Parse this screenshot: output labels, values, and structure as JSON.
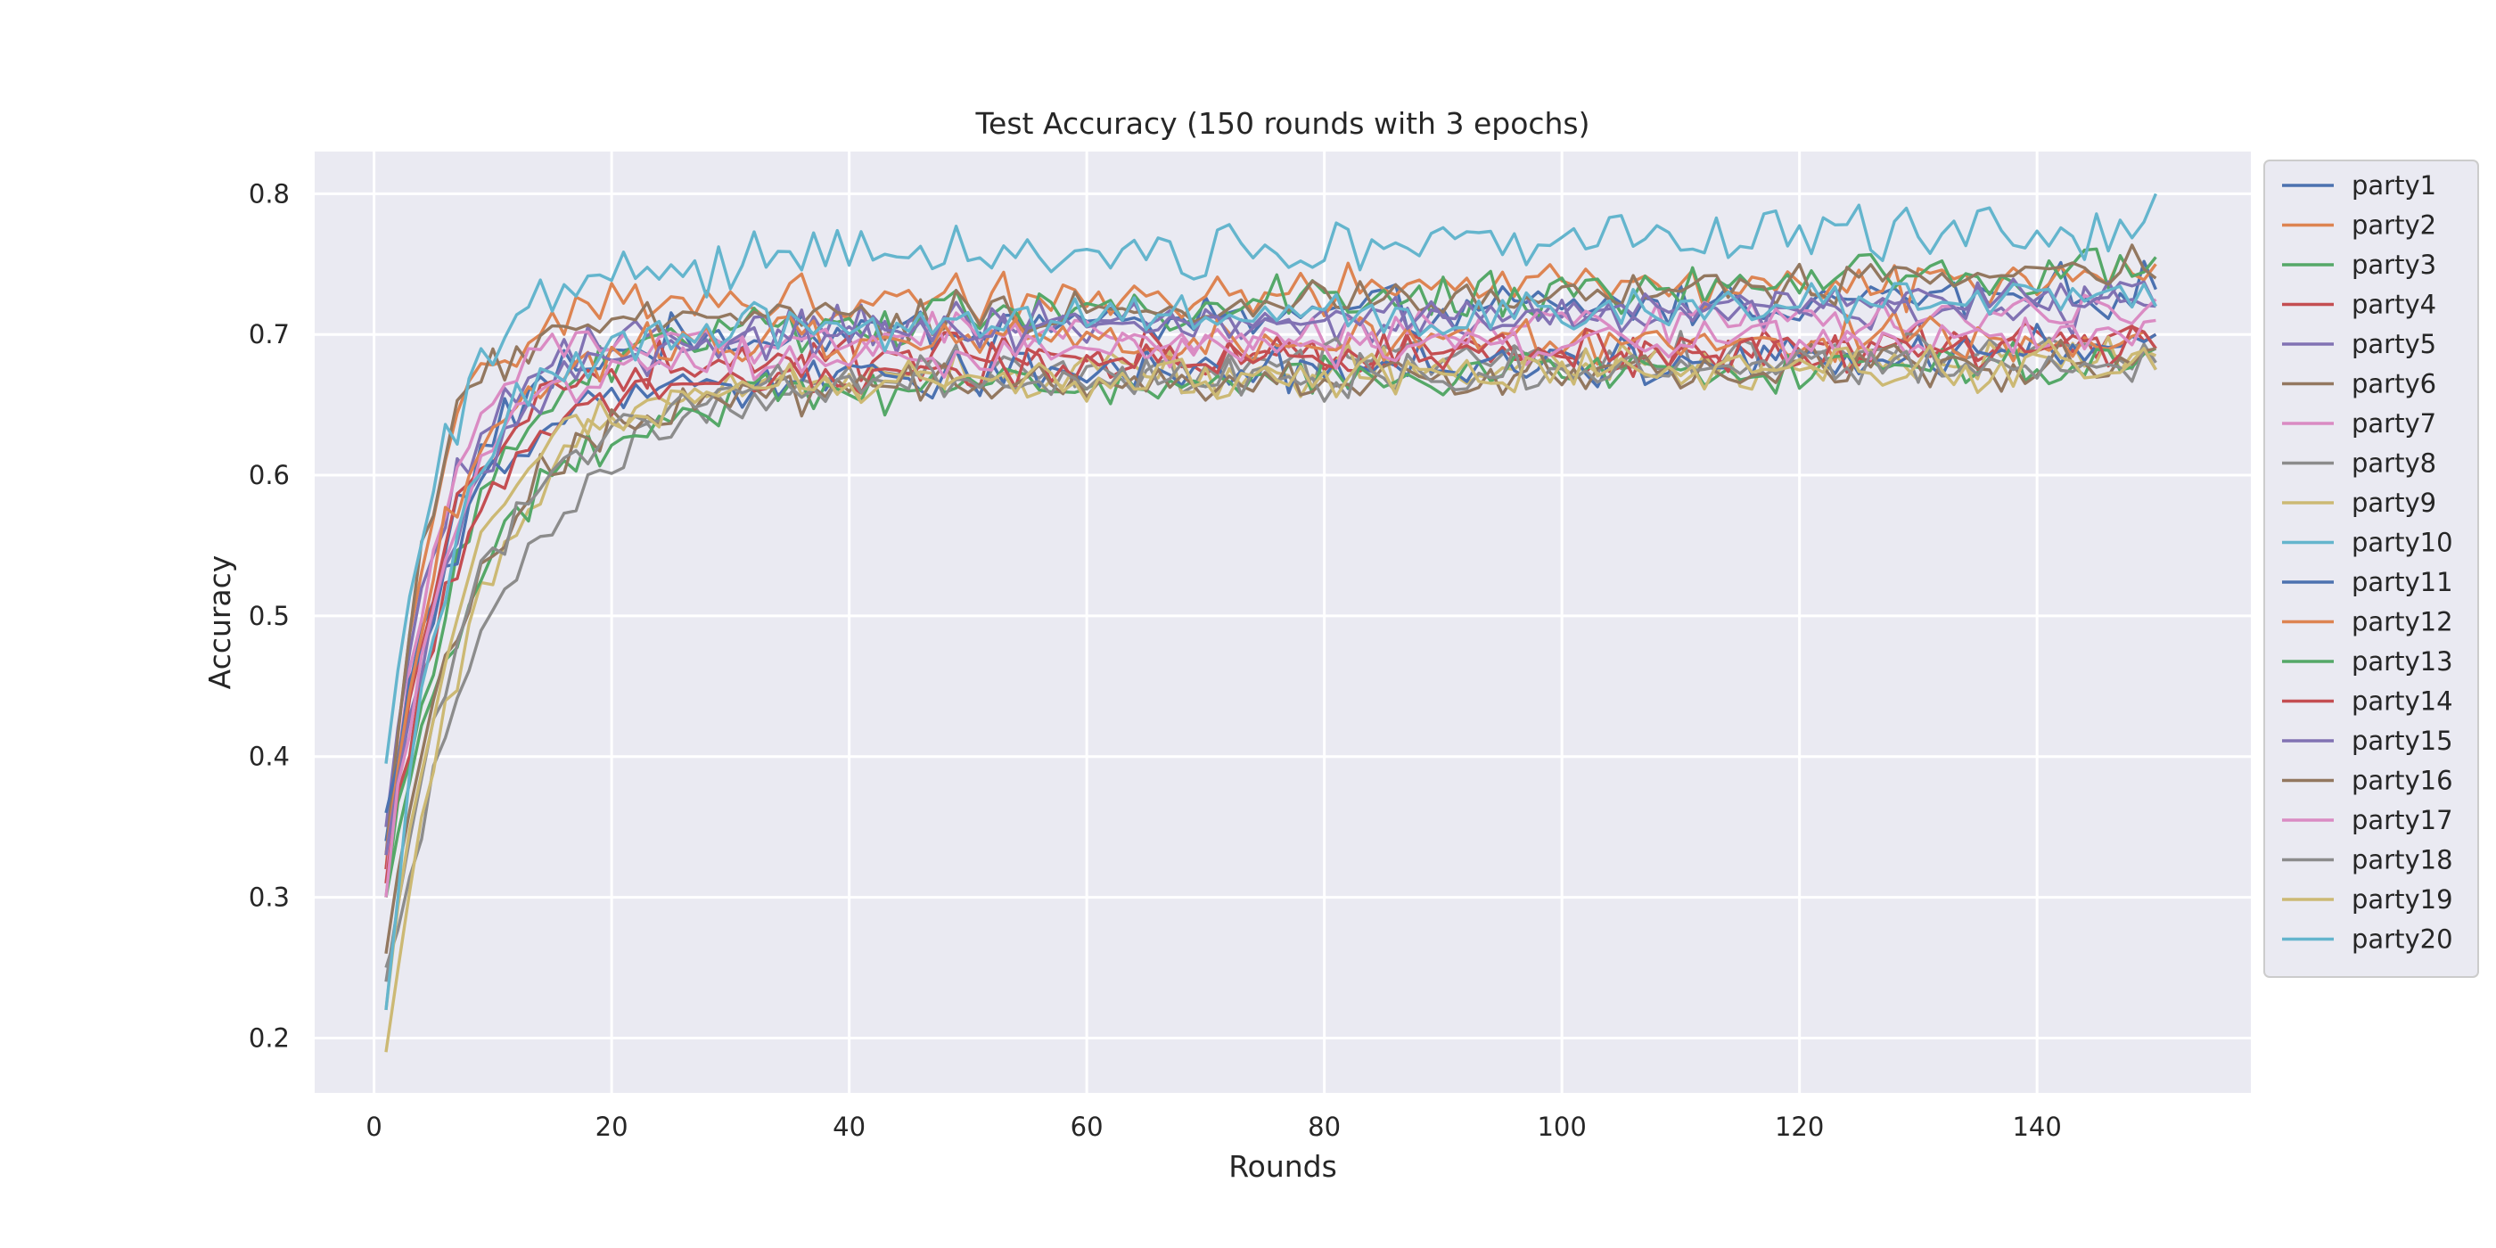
{
  "chart_data": {
    "type": "line",
    "title": "Test Accuracy (150 rounds with 3 epochs)",
    "xlabel": "Rounds",
    "ylabel": "Accuracy",
    "xlim": [
      -5,
      158
    ],
    "ylim": [
      0.161,
      0.83
    ],
    "xticks": [
      0,
      20,
      40,
      60,
      80,
      100,
      120,
      140
    ],
    "yticks": [
      0.2,
      0.3,
      0.4,
      0.5,
      0.6,
      0.7,
      0.8
    ],
    "grid": true,
    "legend_position": "outside-right",
    "x_range": [
      1,
      150
    ],
    "series": [
      {
        "name": "party1",
        "color": "#4c72b0",
        "start": 0.34,
        "plateau": 0.692,
        "tau": 5.5,
        "late": 0.04,
        "last": 0.732,
        "noise": 0.011
      },
      {
        "name": "party2",
        "color": "#dd8452",
        "start": 0.32,
        "plateau": 0.72,
        "tau": 4.0,
        "late": 0.02,
        "last": 0.75,
        "noise": 0.011
      },
      {
        "name": "party3",
        "color": "#55a868",
        "start": 0.3,
        "plateau": 0.7,
        "tau": 7.0,
        "late": 0.045,
        "last": 0.755,
        "noise": 0.011
      },
      {
        "name": "party4",
        "color": "#c44e52",
        "start": 0.32,
        "plateau": 0.68,
        "tau": 5.0,
        "late": 0.015,
        "last": 0.7,
        "noise": 0.01
      },
      {
        "name": "party5",
        "color": "#8172b3",
        "start": 0.35,
        "plateau": 0.7,
        "tau": 5.0,
        "late": 0.02,
        "last": 0.72,
        "noise": 0.01
      },
      {
        "name": "party6",
        "color": "#937860",
        "start": 0.33,
        "plateau": 0.7,
        "tau": 3.5,
        "late": 0.045,
        "last": 0.74,
        "noise": 0.01
      },
      {
        "name": "party7",
        "color": "#da8bc3",
        "start": 0.31,
        "plateau": 0.69,
        "tau": 4.0,
        "late": 0.025,
        "last": 0.725,
        "noise": 0.01
      },
      {
        "name": "party8",
        "color": "#8c8c8c",
        "start": 0.25,
        "plateau": 0.67,
        "tau": 10.0,
        "late": 0.02,
        "last": 0.68,
        "noise": 0.011
      },
      {
        "name": "party9",
        "color": "#ccb974",
        "start": 0.19,
        "plateau": 0.665,
        "tau": 7.0,
        "late": 0.02,
        "last": 0.685,
        "noise": 0.01
      },
      {
        "name": "party10",
        "color": "#64b5cd",
        "start": 0.395,
        "plateau": 0.745,
        "tau": 5.0,
        "late": 0.03,
        "last": 0.8,
        "noise": 0.012
      },
      {
        "name": "party11",
        "color": "#4c72b0",
        "start": 0.36,
        "plateau": 0.66,
        "tau": 6.0,
        "late": 0.03,
        "last": 0.7,
        "noise": 0.01
      },
      {
        "name": "party12",
        "color": "#dd8452",
        "start": 0.33,
        "plateau": 0.695,
        "tau": 5.0,
        "late": 0.0,
        "last": 0.69,
        "noise": 0.012
      },
      {
        "name": "party13",
        "color": "#55a868",
        "start": 0.3,
        "plateau": 0.655,
        "tau": 8.0,
        "late": 0.025,
        "last": 0.69,
        "noise": 0.01
      },
      {
        "name": "party14",
        "color": "#c44e52",
        "start": 0.31,
        "plateau": 0.665,
        "tau": 6.0,
        "late": 0.03,
        "last": 0.69,
        "noise": 0.01
      },
      {
        "name": "party15",
        "color": "#8172b3",
        "start": 0.33,
        "plateau": 0.69,
        "tau": 6.0,
        "late": 0.04,
        "last": 0.72,
        "noise": 0.01
      },
      {
        "name": "party16",
        "color": "#937860",
        "start": 0.26,
        "plateau": 0.655,
        "tau": 7.0,
        "late": 0.025,
        "last": 0.69,
        "noise": 0.01
      },
      {
        "name": "party17",
        "color": "#da8bc3",
        "start": 0.3,
        "plateau": 0.68,
        "tau": 5.0,
        "late": 0.02,
        "last": 0.71,
        "noise": 0.01
      },
      {
        "name": "party18",
        "color": "#8c8c8c",
        "start": 0.24,
        "plateau": 0.66,
        "tau": 7.0,
        "late": 0.02,
        "last": 0.675,
        "noise": 0.01
      },
      {
        "name": "party19",
        "color": "#ccb974",
        "start": 0.22,
        "plateau": 0.66,
        "tau": 6.0,
        "late": 0.02,
        "last": 0.675,
        "noise": 0.01
      },
      {
        "name": "party20",
        "color": "#64b5cd",
        "start": 0.22,
        "plateau": 0.7,
        "tau": 5.0,
        "late": 0.025,
        "last": 0.72,
        "noise": 0.01
      }
    ]
  }
}
